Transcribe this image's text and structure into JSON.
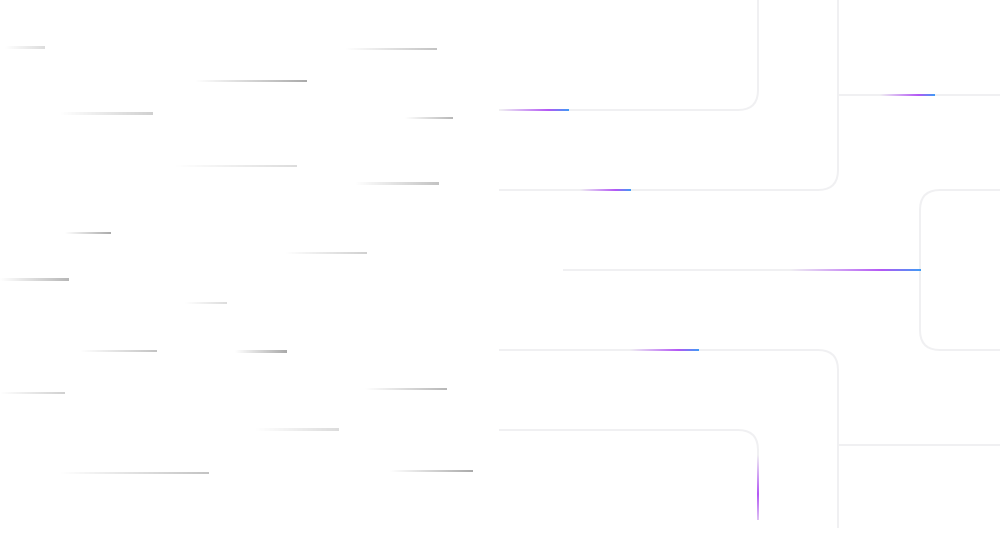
{
  "colors": {
    "background": "#ffffff",
    "track": "#f0f0f2",
    "accent_purple": "#b357f5",
    "accent_blue": "#3d9bf5",
    "streak": "#9a9a9a"
  }
}
